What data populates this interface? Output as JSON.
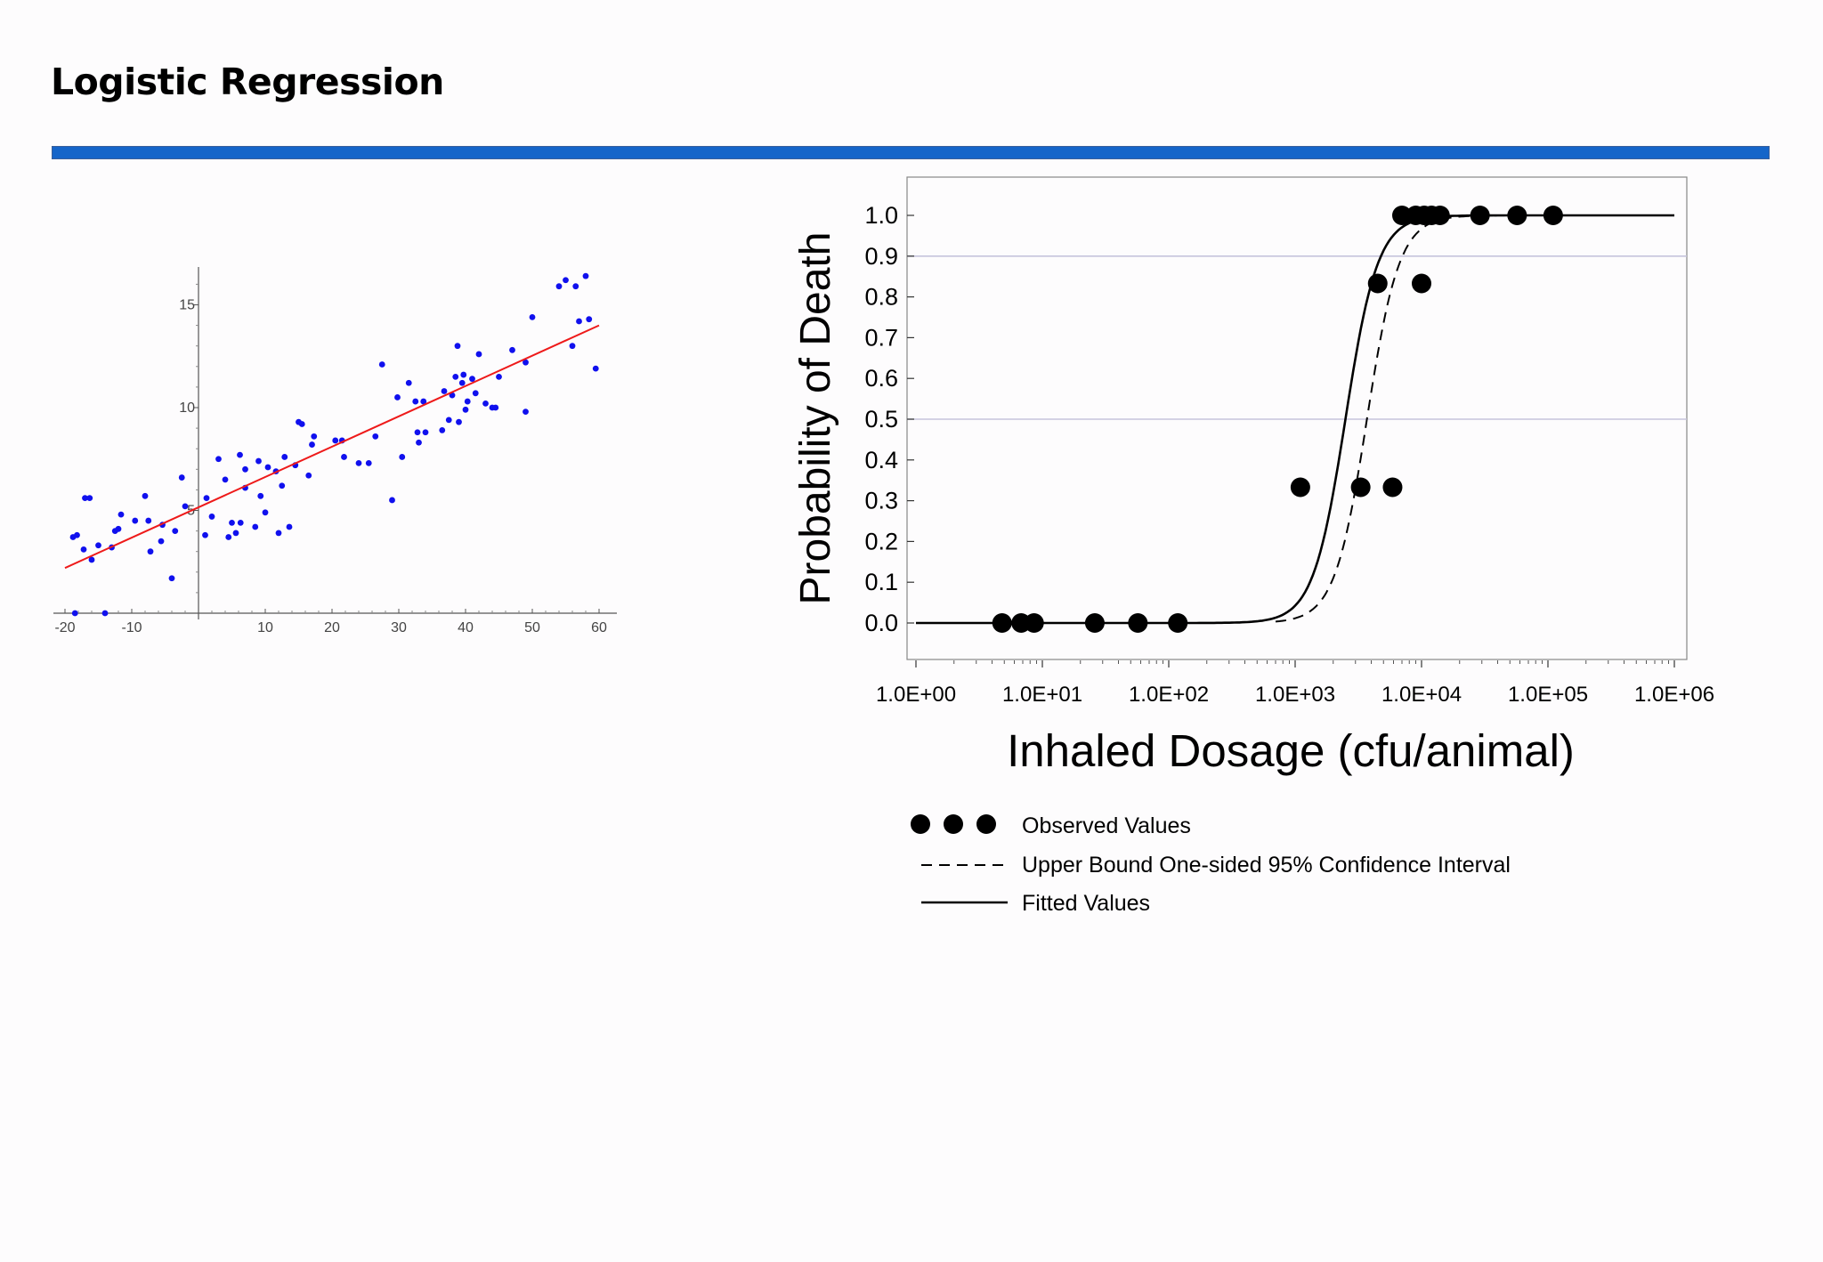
{
  "slide": {
    "title": "Logistic Regression",
    "accent_color": "#1565c9"
  },
  "chart_data": [
    {
      "type": "scatter",
      "title": "",
      "xlabel": "",
      "ylabel": "",
      "xlim": [
        -20,
        62
      ],
      "ylim": [
        0,
        17
      ],
      "x_ticks": [
        -20,
        -10,
        10,
        20,
        30,
        40,
        50,
        60
      ],
      "x_tick_labels": [
        "-20",
        "-10",
        "10",
        "20",
        "30",
        "40",
        "50",
        "60"
      ],
      "y_ticks": [
        5,
        10,
        15
      ],
      "y_tick_labels": [
        "5",
        "10",
        "15"
      ],
      "grid": false,
      "point_color": "#1010ee",
      "line_color": "#ee1a1a",
      "series": [
        {
          "kind": "points",
          "points": [
            [
              -18.5,
              0
            ],
            [
              -14,
              0
            ],
            [
              -18.8,
              3.7
            ],
            [
              -18.2,
              3.8
            ],
            [
              -17,
              5.6
            ],
            [
              -16.3,
              5.6
            ],
            [
              -17.2,
              3.1
            ],
            [
              -16,
              2.6
            ],
            [
              -15,
              3.3
            ],
            [
              -13,
              3.2
            ],
            [
              -12.5,
              4
            ],
            [
              -12,
              4.1
            ],
            [
              -11.6,
              4.8
            ],
            [
              -9.5,
              4.5
            ],
            [
              -8,
              5.7
            ],
            [
              -7.5,
              4.5
            ],
            [
              -7.2,
              3
            ],
            [
              -5.6,
              3.5
            ],
            [
              -5.4,
              4.3
            ],
            [
              -4,
              1.7
            ],
            [
              -3.5,
              4
            ],
            [
              -2,
              5.2
            ],
            [
              -2.5,
              6.6
            ],
            [
              1,
              3.8
            ],
            [
              1.2,
              5.6
            ],
            [
              2,
              4.7
            ],
            [
              3,
              7.5
            ],
            [
              4,
              6.5
            ],
            [
              4.5,
              3.7
            ],
            [
              5,
              4.4
            ],
            [
              5.6,
              3.9
            ],
            [
              6.2,
              7.7
            ],
            [
              6.3,
              4.4
            ],
            [
              7,
              7
            ],
            [
              7,
              6.1
            ],
            [
              8.5,
              4.2
            ],
            [
              9,
              7.4
            ],
            [
              9.3,
              5.7
            ],
            [
              10,
              4.9
            ],
            [
              10.4,
              7.1
            ],
            [
              11.6,
              6.9
            ],
            [
              12,
              3.9
            ],
            [
              12.5,
              6.2
            ],
            [
              12.9,
              7.6
            ],
            [
              13.6,
              4.2
            ],
            [
              14.5,
              7.2
            ],
            [
              15,
              9.3
            ],
            [
              15.5,
              9.2
            ],
            [
              16.5,
              6.7
            ],
            [
              17,
              8.2
            ],
            [
              17.3,
              8.6
            ],
            [
              20.5,
              8.4
            ],
            [
              21.5,
              8.4
            ],
            [
              21.8,
              7.6
            ],
            [
              24,
              7.3
            ],
            [
              25.5,
              7.3
            ],
            [
              26.5,
              8.6
            ],
            [
              27.5,
              12.1
            ],
            [
              29,
              5.5
            ],
            [
              29.8,
              10.5
            ],
            [
              30.5,
              7.6
            ],
            [
              31.5,
              11.2
            ],
            [
              32.5,
              10.3
            ],
            [
              32.8,
              8.8
            ],
            [
              33,
              8.3
            ],
            [
              33.7,
              10.3
            ],
            [
              34,
              8.8
            ],
            [
              36.5,
              8.9
            ],
            [
              36.8,
              10.8
            ],
            [
              37.5,
              9.4
            ],
            [
              38,
              10.6
            ],
            [
              38.5,
              11.5
            ],
            [
              38.8,
              13
            ],
            [
              39,
              9.3
            ],
            [
              39.5,
              11.2
            ],
            [
              39.7,
              11.6
            ],
            [
              40,
              9.9
            ],
            [
              40.3,
              10.3
            ],
            [
              41,
              11.4
            ],
            [
              41.5,
              10.7
            ],
            [
              42,
              12.6
            ],
            [
              43,
              10.2
            ],
            [
              44,
              10
            ],
            [
              44.5,
              10
            ],
            [
              45,
              11.5
            ],
            [
              47,
              12.8
            ],
            [
              49,
              9.8
            ],
            [
              49,
              12.2
            ],
            [
              50,
              14.4
            ],
            [
              54,
              15.9
            ],
            [
              55,
              16.2
            ],
            [
              56,
              13
            ],
            [
              56.5,
              15.9
            ],
            [
              57,
              14.2
            ],
            [
              58,
              16.4
            ],
            [
              58.5,
              14.3
            ],
            [
              59.5,
              11.9
            ]
          ]
        },
        {
          "kind": "regression-line",
          "points": [
            [
              -20,
              2.2
            ],
            [
              60,
              14
            ]
          ]
        }
      ]
    },
    {
      "type": "scatter",
      "title": "",
      "xlabel": "Inhaled Dosage (cfu/animal)",
      "ylabel": "Probability of Death",
      "x_scale": "log",
      "xlim": [
        1,
        1000000
      ],
      "ylim": [
        0,
        1
      ],
      "x_ticks": [
        1,
        10,
        100,
        1000,
        10000,
        100000,
        1000000
      ],
      "x_tick_labels": [
        "1.0E+00",
        "1.0E+01",
        "1.0E+02",
        "1.0E+03",
        "1.0E+04",
        "1.0E+05",
        "1.0E+06"
      ],
      "y_ticks": [
        0,
        0.1,
        0.2,
        0.3,
        0.4,
        0.5,
        0.6,
        0.7,
        0.8,
        0.9,
        1.0
      ],
      "y_tick_labels": [
        "0.0",
        "0.1",
        "0.2",
        "0.3",
        "0.4",
        "0.5",
        "0.6",
        "0.7",
        "0.8",
        "0.9",
        "1.0"
      ],
      "gridlines_y": [
        0.5,
        0.9
      ],
      "grid_color": "#c6c4dc",
      "legend_position": "bottom-left",
      "series": [
        {
          "name": "Observed Values",
          "kind": "points",
          "points": [
            [
              4.8,
              0
            ],
            [
              6.8,
              0
            ],
            [
              8.6,
              0
            ],
            [
              26,
              0
            ],
            [
              57,
              0
            ],
            [
              118,
              0
            ],
            [
              1100,
              0.333
            ],
            [
              3300,
              0.333
            ],
            [
              5900,
              0.333
            ],
            [
              4500,
              0.833
            ],
            [
              10000,
              0.833
            ],
            [
              7000,
              1
            ],
            [
              9000,
              1
            ],
            [
              10500,
              1
            ],
            [
              12000,
              1
            ],
            [
              14000,
              1
            ],
            [
              29000,
              1
            ],
            [
              57000,
              1
            ],
            [
              110000,
              1
            ]
          ]
        },
        {
          "name": "Upper Bound One-sided 95% Confidence Interval",
          "kind": "dashed-curve",
          "logistic_center": 3700,
          "logistic_slope": 3.4,
          "x_range": [
            700,
            1000000
          ]
        },
        {
          "name": "Fitted Values",
          "kind": "solid-curve",
          "logistic_center": 2500,
          "logistic_slope": 3.4,
          "x_range": [
            1,
            1000000
          ]
        }
      ]
    }
  ]
}
